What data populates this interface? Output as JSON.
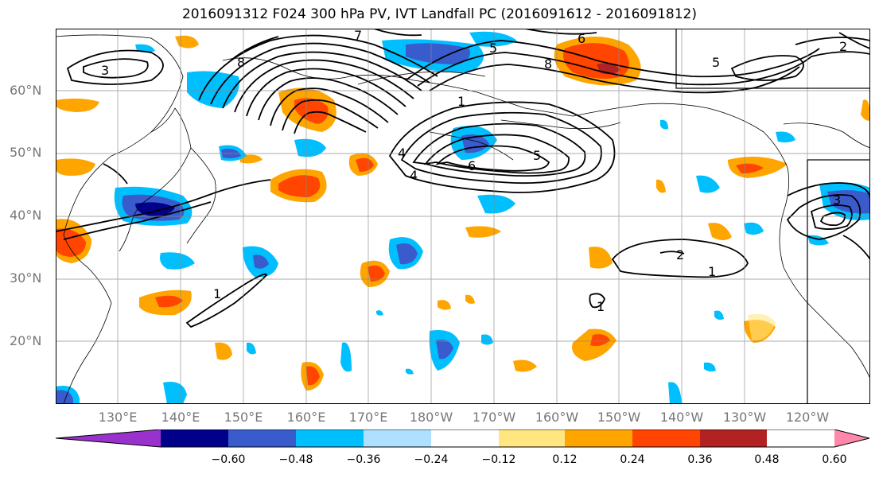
{
  "title": "2016091312 F024 300 hPa PV, IVT Landfall PC (2016091612 - 2016091812)",
  "map": {
    "lat_labels": [
      "60°N",
      "50°N",
      "40°N",
      "30°N",
      "20°N"
    ],
    "lon_labels": [
      "130°E",
      "140°E",
      "150°E",
      "160°E",
      "170°E",
      "180°W",
      "170°W",
      "160°W",
      "150°W",
      "140°W",
      "130°W",
      "120°W"
    ],
    "contour_labels": [
      "1",
      "1",
      "1",
      "1",
      "2",
      "2",
      "3",
      "3",
      "4",
      "4",
      "5",
      "5",
      "5",
      "6",
      "6",
      "7",
      "8",
      "8"
    ]
  },
  "colorbar": {
    "ticks": [
      "−0.60",
      "−0.48",
      "−0.36",
      "−0.24",
      "−0.12",
      "0.12",
      "0.24",
      "0.36",
      "0.48",
      "0.60"
    ],
    "colors": [
      "#9932cc",
      "#00008b",
      "#3a5bcc",
      "#00bfff",
      "#b0e0ff",
      "#ffffff",
      "#ffe680",
      "#ffa500",
      "#ff4500",
      "#b22222",
      "#ff88aa"
    ]
  }
}
